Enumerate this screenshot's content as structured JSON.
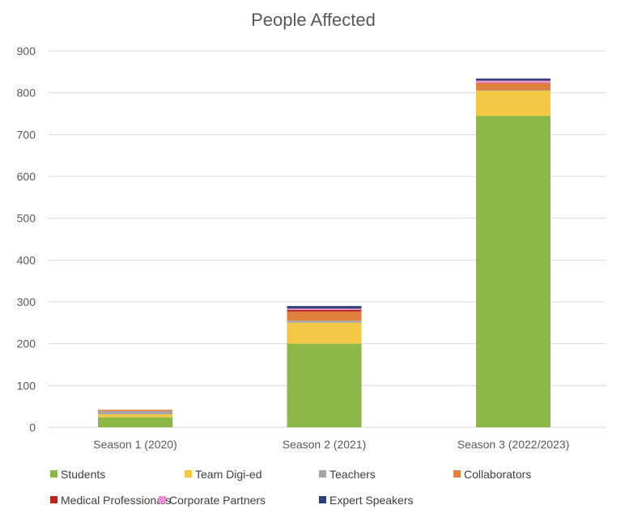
{
  "chart_data": {
    "type": "bar",
    "stacked": true,
    "title": "People Affected",
    "xlabel": "",
    "ylabel": "",
    "ylim": [
      0,
      900
    ],
    "yticks": [
      0,
      100,
      200,
      300,
      400,
      500,
      600,
      700,
      800,
      900
    ],
    "grid": true,
    "legend_position": "bottom",
    "categories": [
      "Season 1 (2020)",
      "Season 2 (2021)",
      "Season 3 (2022/2023)"
    ],
    "series": [
      {
        "name": "Students",
        "color": "#8db849",
        "values": [
          24,
          200,
          745
        ]
      },
      {
        "name": "Team Digi-ed",
        "color": "#f2c744",
        "values": [
          7,
          50,
          60
        ]
      },
      {
        "name": "Teachers",
        "color": "#a5a5a5",
        "values": [
          8,
          5,
          1
        ]
      },
      {
        "name": "Collaborators",
        "color": "#e0803f",
        "values": [
          3,
          22,
          17
        ]
      },
      {
        "name": "Medical Professionals",
        "color": "#b8261f",
        "values": [
          0,
          4,
          1
        ]
      },
      {
        "name": "Corporate Partners",
        "color": "#ee8fd3",
        "values": [
          0,
          3,
          5
        ]
      },
      {
        "name": "Expert Speakers",
        "color": "#2c3f78",
        "values": [
          0,
          6,
          5
        ]
      }
    ]
  }
}
